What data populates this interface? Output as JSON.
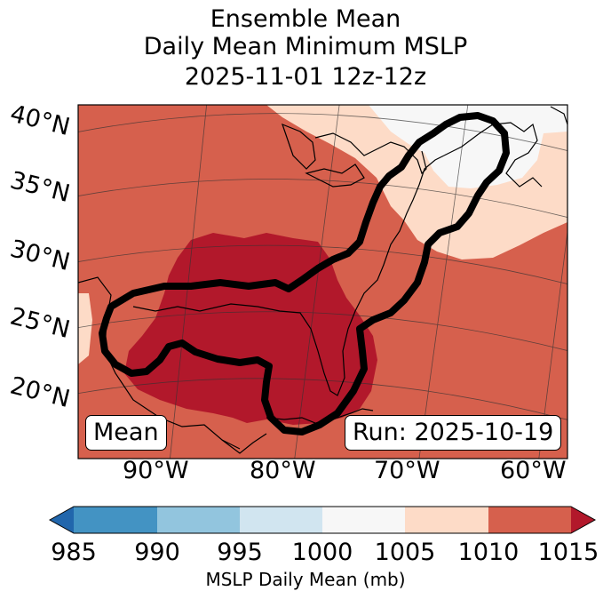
{
  "title": {
    "line1": "Ensemble Mean",
    "line2": "Daily Mean Minimum MSLP",
    "line3": "2025-11-01 12z-12z"
  },
  "map": {
    "lat_labels": [
      "40°N",
      "35°N",
      "30°N",
      "25°N",
      "20°N"
    ],
    "lon_labels": [
      "90°W",
      "80°W",
      "70°W",
      "60°W"
    ],
    "mean_label": "Mean",
    "run_label": "Run: 2025-10-19"
  },
  "colorbar": {
    "ticks": [
      "985",
      "990",
      "995",
      "1000",
      "1005",
      "1010",
      "1015"
    ],
    "label": "MSLP Daily Mean (mb)",
    "colors": {
      "lt985": "#2166ac",
      "985_990": "#4393c3",
      "990_995": "#92c5de",
      "995_1000": "#d1e5f0",
      "1000_1005": "#f7f7f7",
      "1005_1010": "#fddbc7",
      "1010_1015": "#d6604d",
      "gt1015": "#b2182b"
    }
  }
}
